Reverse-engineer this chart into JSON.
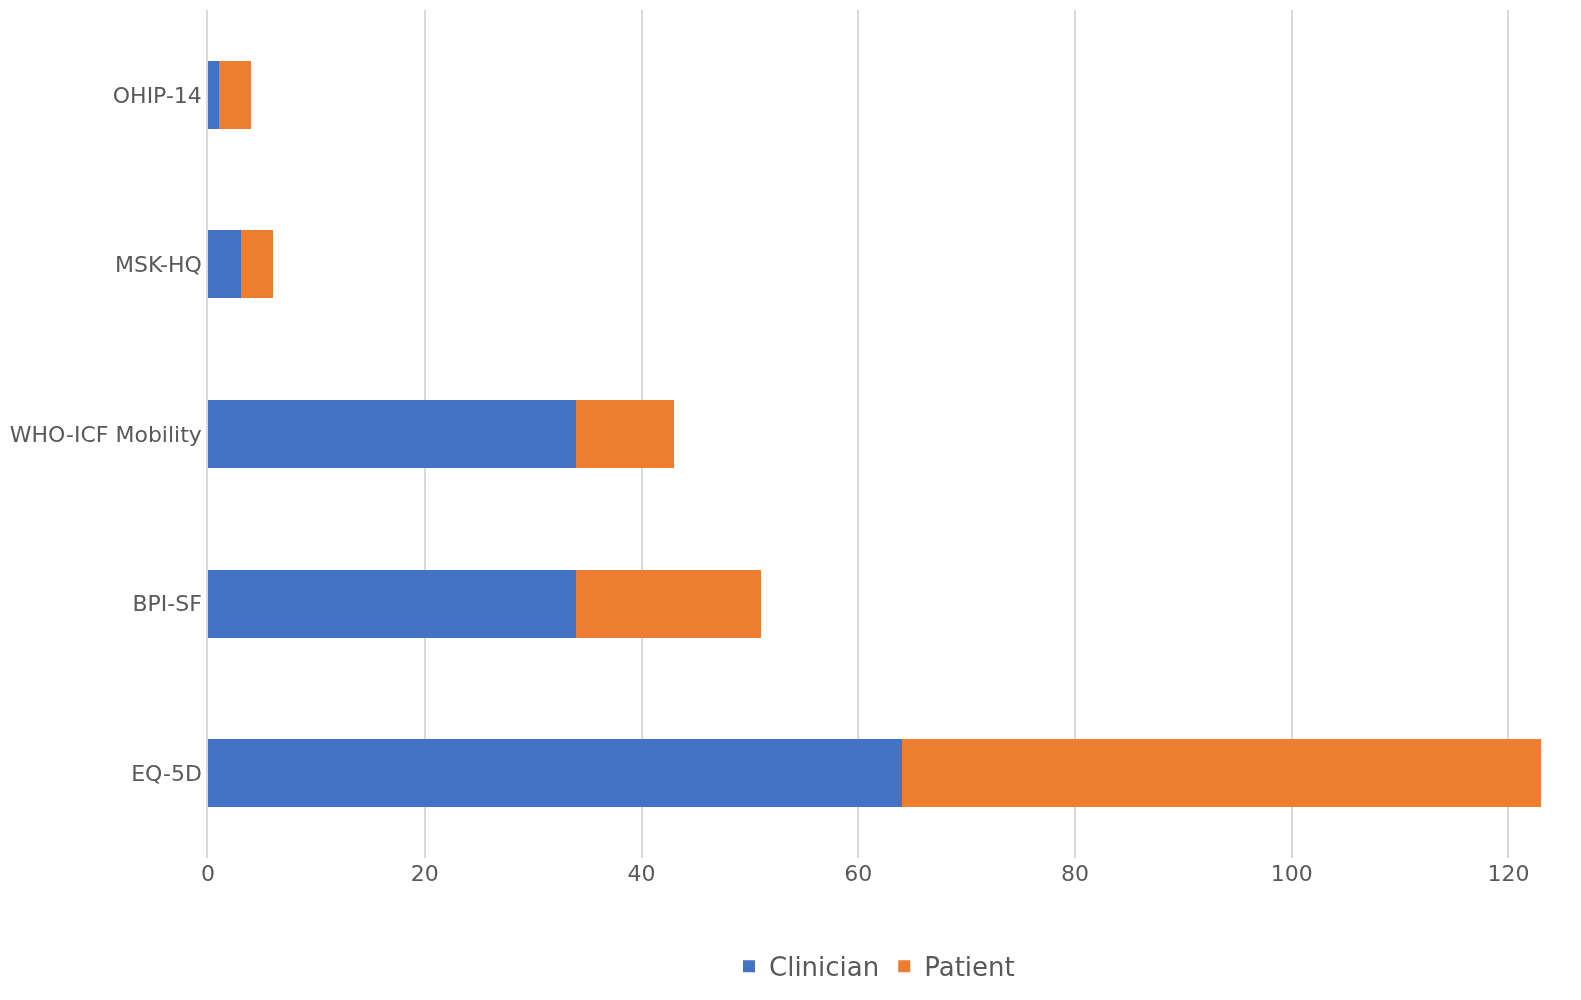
{
  "chart_data": {
    "type": "bar",
    "orientation": "horizontal",
    "stacked": true,
    "categories": [
      "OHIP-14",
      "MSK-HQ",
      "WHO-ICF Mobility",
      "BPI-SF",
      "EQ-5D"
    ],
    "series": [
      {
        "name": "Clinician",
        "color": "#4472c4",
        "values": [
          1,
          3,
          34,
          34,
          64
        ]
      },
      {
        "name": "Patient",
        "color": "#ed7d31",
        "values": [
          3,
          3,
          9,
          17,
          59
        ]
      }
    ],
    "xlim": [
      0,
      123
    ],
    "xticks": [
      0,
      20,
      40,
      60,
      80,
      100,
      120
    ],
    "grid": "x",
    "legend": "bottom"
  }
}
